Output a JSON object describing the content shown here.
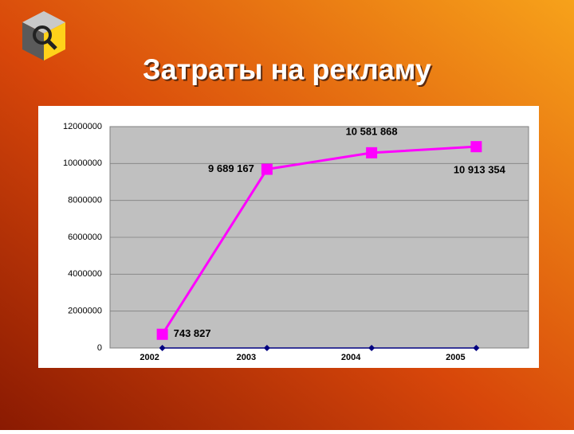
{
  "chart_data": {
    "type": "line",
    "title": "Затраты на рекламу",
    "categories": [
      "2002",
      "2003",
      "2004",
      "2005"
    ],
    "series": [
      {
        "color": "#ff00ff",
        "values": [
          743827,
          9689167,
          10581868,
          10913354
        ],
        "value_labels": [
          "743 827",
          "9 689 167",
          "10 581 868",
          "10 913 354"
        ]
      },
      {
        "color": "#000080",
        "values": [
          0,
          0,
          0,
          0
        ]
      }
    ],
    "ylim": [
      0,
      12000000
    ],
    "yticks": [
      0,
      2000000,
      4000000,
      6000000,
      8000000,
      10000000,
      12000000
    ],
    "grid": true
  }
}
